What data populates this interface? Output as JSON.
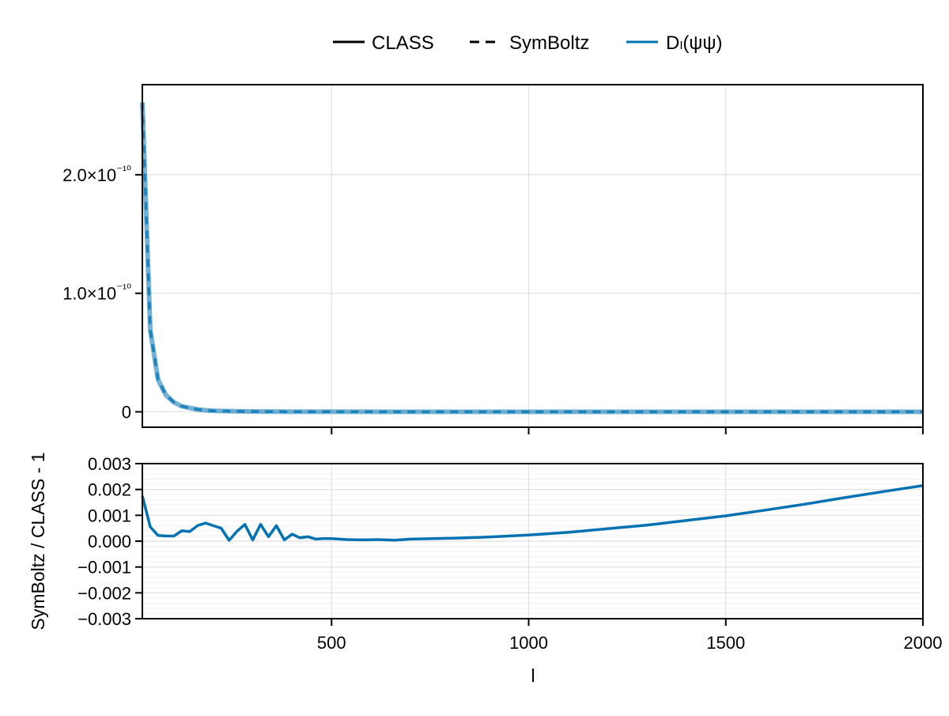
{
  "legend": {
    "items": [
      {
        "label": "CLASS",
        "style": "solid",
        "color": "#000000"
      },
      {
        "label": "SymBoltz",
        "style": "dashed",
        "color": "#000000"
      },
      {
        "label": "Dₗ(ψψ)",
        "style": "solid",
        "color": "#0072b2"
      }
    ]
  },
  "colors": {
    "series": "#0072b2",
    "series_light": "#3f95c9",
    "grid": "#e0e0e0",
    "minor_grid": "#f0f0f0",
    "axis": "#000000"
  },
  "chart_data": [
    {
      "type": "line",
      "title": "",
      "panel": "top",
      "xlabel": "",
      "ylabel": "",
      "xlim": [
        20,
        2000
      ],
      "ylim": [
        -1.3e-11,
        2.76e-10
      ],
      "x_ticks": [
        500,
        1000,
        1500,
        2000
      ],
      "x_tick_labels_visible": false,
      "y_ticks": [
        0,
        1e-10,
        2e-10
      ],
      "y_tick_labels": [
        "0",
        "1.0×10⁻¹⁰",
        "2.0×10⁻¹⁰"
      ],
      "grid": true,
      "legend_position": "top-center (outside)",
      "series": [
        {
          "name": "CLASS",
          "style": "solid",
          "color": "#0072b2",
          "alpha": 0.6
        },
        {
          "name": "SymBoltz",
          "style": "dashed",
          "color": "#0072b2"
        }
      ],
      "x": [
        20,
        40,
        60,
        80,
        100,
        120,
        140,
        160,
        180,
        200,
        250,
        300,
        400,
        500,
        750,
        1000,
        1500,
        2000
      ],
      "values": [
        2.61e-10,
        6.9e-11,
        2.7e-11,
        1.4e-11,
        8e-12,
        4.7e-12,
        3.3e-12,
        2e-12,
        1.3e-12,
        9e-13,
        4.5e-13,
        2.5e-13,
        1e-13,
        5e-14,
        1.5e-14,
        6e-15,
        1.5e-15,
        6e-16
      ]
    },
    {
      "type": "line",
      "title": "",
      "panel": "bottom",
      "xlabel": "l",
      "ylabel": "SymBoltz / CLASS - 1",
      "xlim": [
        20,
        2000
      ],
      "ylim": [
        -0.003,
        0.003
      ],
      "x_ticks": [
        500,
        1000,
        1500,
        2000
      ],
      "x_tick_labels": [
        "500",
        "1000",
        "1500",
        "2000"
      ],
      "y_ticks": [
        -0.003,
        -0.002,
        -0.001,
        0.0,
        0.001,
        0.002,
        0.003
      ],
      "y_tick_labels": [
        "−0.003",
        "−0.002",
        "−0.001",
        "0.000",
        "0.001",
        "0.002",
        "0.003"
      ],
      "grid": true,
      "minor_grid": true,
      "series": [
        {
          "name": "SymBoltz / CLASS - 1",
          "color": "#0072b2"
        }
      ],
      "x": [
        20,
        40,
        60,
        80,
        100,
        120,
        140,
        160,
        180,
        200,
        220,
        240,
        260,
        280,
        300,
        320,
        340,
        360,
        380,
        400,
        420,
        440,
        460,
        480,
        500,
        540,
        580,
        620,
        660,
        700,
        760,
        820,
        880,
        940,
        1000,
        1100,
        1200,
        1300,
        1400,
        1500,
        1600,
        1700,
        1800,
        1900,
        2000
      ],
      "values": [
        0.00175,
        0.00055,
        0.00022,
        0.0002,
        0.0002,
        0.0004,
        0.00037,
        0.0006,
        0.0007,
        0.0006,
        0.0005,
        3e-05,
        0.00038,
        0.00065,
        5e-05,
        0.00065,
        0.00017,
        0.0006,
        5e-05,
        0.00027,
        0.00013,
        0.00017,
        8e-05,
        0.0001,
        0.0001,
        6e-05,
        5e-05,
        6e-05,
        4e-05,
        8e-05,
        0.0001,
        0.00012,
        0.00015,
        0.00019,
        0.00024,
        0.00034,
        0.00048,
        0.00062,
        0.0008,
        0.00098,
        0.0012,
        0.00143,
        0.00168,
        0.00192,
        0.00215
      ]
    }
  ]
}
